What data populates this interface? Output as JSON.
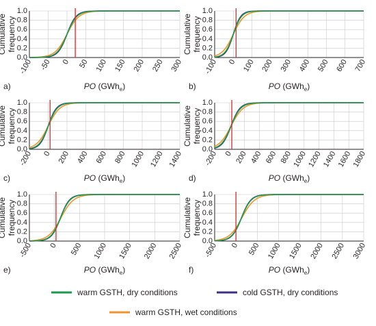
{
  "chart_data": [
    {
      "panel": "a)",
      "type": "line",
      "ylabel": [
        "Cumulative",
        "frequency"
      ],
      "xlabel": {
        "italic": "PO",
        "unit": "(GWh",
        "sub": "e",
        "close": ")"
      },
      "xlim": [
        -100,
        300
      ],
      "xticks": [
        -100,
        -50,
        0,
        50,
        100,
        150,
        200,
        250,
        300
      ],
      "ylim": [
        0,
        1
      ],
      "yticks": [
        "0.0",
        "0.2",
        "0.4",
        "0.6",
        "0.8",
        "1.0"
      ],
      "red_line_x": 22,
      "series": [
        {
          "name": "warm GSTH, dry conditions",
          "color": "#1a9a4a",
          "mu": 0,
          "s": 13
        },
        {
          "name": "cold GSTH, dry conditions",
          "color": "#3b2f86",
          "mu": 0,
          "s": 12
        },
        {
          "name": "warm GSTH, wet conditions",
          "color": "#f0922e",
          "mu": 0,
          "s": 16
        }
      ]
    },
    {
      "panel": "b)",
      "type": "line",
      "ylabel": [
        "Cumulative",
        "frequency"
      ],
      "xlabel": {
        "italic": "PO",
        "unit": "(GWh",
        "sub": "e",
        "close": ")"
      },
      "xlim": [
        -100,
        700
      ],
      "xticks": [
        -100,
        0,
        100,
        200,
        300,
        400,
        500,
        600,
        700
      ],
      "ylim": [
        0,
        1
      ],
      "yticks": [
        "0.0",
        "0.2",
        "0.4",
        "0.6",
        "0.8",
        "1.0"
      ],
      "red_line_x": 15,
      "series": [
        {
          "name": "warm GSTH, dry conditions",
          "color": "#1a9a4a",
          "mu": 0,
          "s": 22
        },
        {
          "name": "cold GSTH, dry conditions",
          "color": "#3b2f86",
          "mu": 0,
          "s": 20
        },
        {
          "name": "warm GSTH, wet conditions",
          "color": "#f0922e",
          "mu": 0,
          "s": 30
        }
      ]
    },
    {
      "panel": "c)",
      "type": "line",
      "ylabel": [
        "Cumulative",
        "frequency"
      ],
      "xlabel": {
        "italic": "PO",
        "unit": "(GWh",
        "sub": "e",
        "close": ")"
      },
      "xlim": [
        -200,
        1400
      ],
      "xticks": [
        -200,
        0,
        200,
        400,
        600,
        800,
        1000,
        1200,
        1400
      ],
      "ylim": [
        0,
        1
      ],
      "yticks": [
        "0.0",
        "0.2",
        "0.4",
        "0.6",
        "0.8",
        "1.0"
      ],
      "red_line_x": 20,
      "series": [
        {
          "name": "warm GSTH, dry conditions",
          "color": "#1a9a4a",
          "mu": 0,
          "s": 48
        },
        {
          "name": "cold GSTH, dry conditions",
          "color": "#3b2f86",
          "mu": 0,
          "s": 44
        },
        {
          "name": "warm GSTH, wet conditions",
          "color": "#f0922e",
          "mu": 0,
          "s": 62
        }
      ]
    },
    {
      "panel": "d)",
      "type": "line",
      "ylabel": [
        "Cumulative",
        "frequency"
      ],
      "xlabel": {
        "italic": "PO",
        "unit": "(GWh",
        "sub": "e",
        "close": ")"
      },
      "xlim": [
        -200,
        1800
      ],
      "xticks": [
        -200,
        0,
        200,
        400,
        600,
        800,
        1000,
        1200,
        1400,
        1600,
        1800
      ],
      "ylim": [
        0,
        1
      ],
      "yticks": [
        "0.0",
        "0.2",
        "0.4",
        "0.6",
        "0.8",
        "1.0"
      ],
      "red_line_x": 30,
      "series": [
        {
          "name": "warm GSTH, dry conditions",
          "color": "#1a9a4a",
          "mu": 20,
          "s": 65
        },
        {
          "name": "cold GSTH, dry conditions",
          "color": "#3b2f86",
          "mu": 20,
          "s": 60
        },
        {
          "name": "warm GSTH, wet conditions",
          "color": "#f0922e",
          "mu": 20,
          "s": 82
        }
      ]
    },
    {
      "panel": "e)",
      "type": "line",
      "ylabel": [
        "Cumulative",
        "frequency"
      ],
      "xlabel": {
        "italic": "PO",
        "unit": "(GWh",
        "sub": "e",
        "close": ")"
      },
      "xlim": [
        -500,
        2500
      ],
      "xticks": [
        -500,
        0,
        500,
        1000,
        1500,
        2000,
        2500
      ],
      "ylim": [
        0,
        1
      ],
      "yticks": [
        "0.0",
        "0.2",
        "0.4",
        "0.6",
        "0.8",
        "1.0"
      ],
      "red_line_x": 30,
      "series": [
        {
          "name": "warm GSTH, dry conditions",
          "color": "#1a9a4a",
          "mu": 120,
          "s": 95
        },
        {
          "name": "cold GSTH, dry conditions",
          "color": "#3b2f86",
          "mu": 120,
          "s": 90
        },
        {
          "name": "warm GSTH, wet conditions",
          "color": "#f0922e",
          "mu": 130,
          "s": 125
        }
      ]
    },
    {
      "panel": "f)",
      "type": "line",
      "ylabel": [
        "Cumulative",
        "frequency"
      ],
      "xlabel": {
        "italic": "PO",
        "unit": "(GWh",
        "sub": "e",
        "close": ")"
      },
      "xlim": [
        -500,
        3000
      ],
      "xticks": [
        -500,
        0,
        500,
        1000,
        1500,
        2000,
        2500,
        3000
      ],
      "ylim": [
        0,
        1
      ],
      "yticks": [
        "0.0",
        "0.2",
        "0.4",
        "0.6",
        "0.8",
        "1.0"
      ],
      "red_line_x": 0,
      "series": [
        {
          "name": "warm GSTH, dry conditions",
          "color": "#1a9a4a",
          "mu": 130,
          "s": 115
        },
        {
          "name": "cold GSTH, dry conditions",
          "color": "#3b2f86",
          "mu": 130,
          "s": 110
        },
        {
          "name": "warm GSTH, wet conditions",
          "color": "#f0922e",
          "mu": 140,
          "s": 150
        }
      ]
    }
  ],
  "legend": {
    "placement": "bottom",
    "items": [
      {
        "label": "warm GSTH, dry conditions",
        "color": "#1a9a4a"
      },
      {
        "label": "cold GSTH, dry conditions",
        "color": "#3b2f86"
      },
      {
        "label": "warm GSTH, wet conditions",
        "color": "#f0922e"
      }
    ]
  },
  "colors": {
    "red_line": "#e8312f",
    "grid": "#c8c8c8",
    "axis": "#231f20"
  }
}
